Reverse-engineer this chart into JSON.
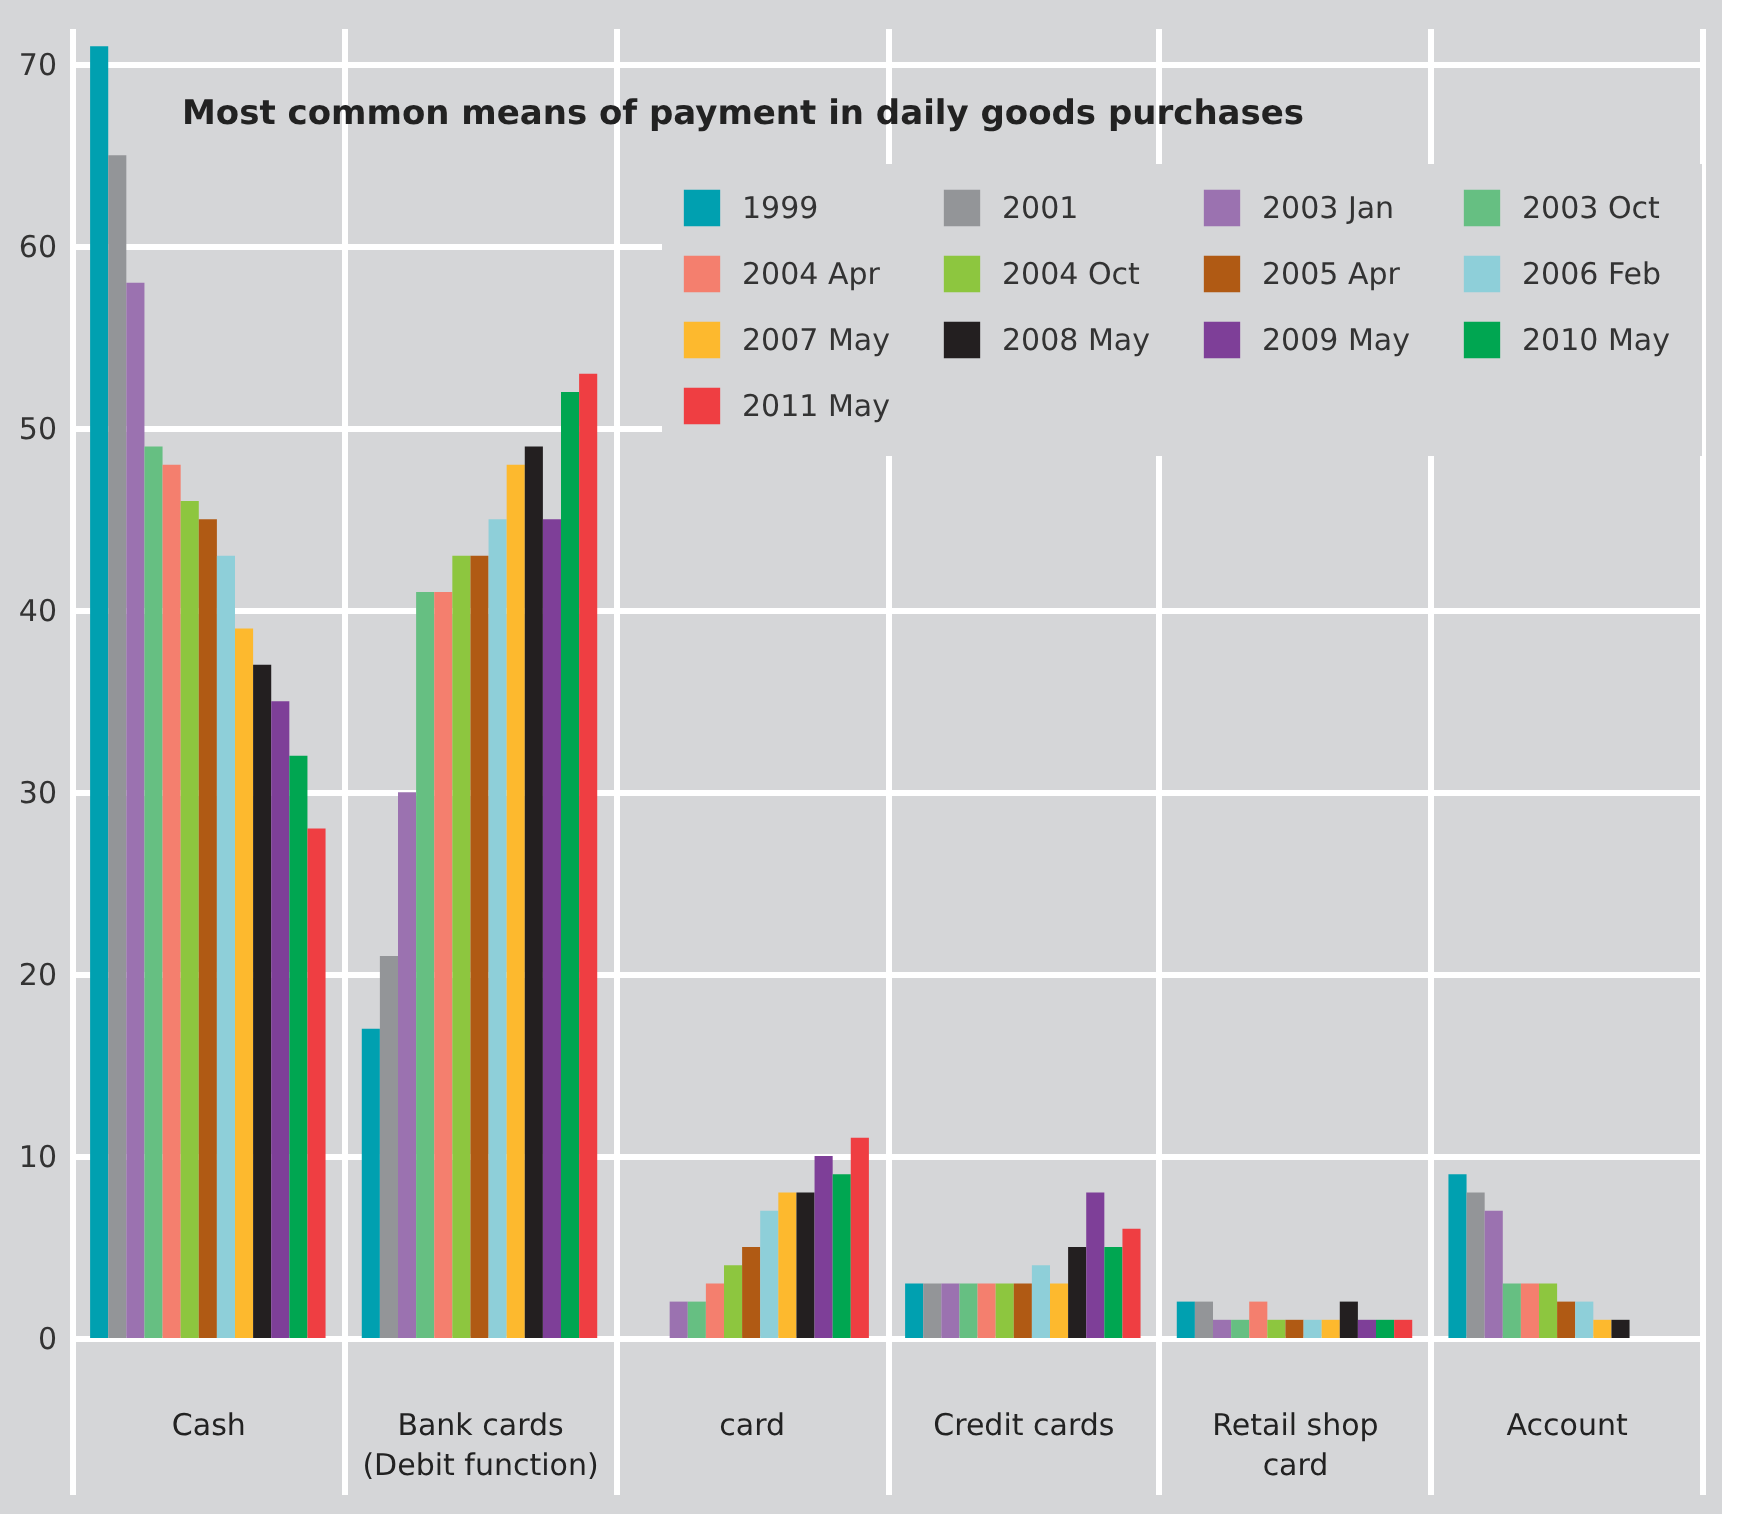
{
  "chart_data": {
    "type": "bar",
    "title": "Most common means of payment in daily goods purchases",
    "categories": [
      "Cash",
      "Bank cards\n(Debit function)",
      "card",
      "Credit cards",
      "Retail shop\ncard",
      "Account"
    ],
    "ylim": [
      0,
      72
    ],
    "yticks": [
      0,
      10,
      20,
      30,
      40,
      50,
      60,
      70
    ],
    "grid": true,
    "legend": "top right",
    "series": [
      {
        "name": "1999",
        "color": "#00a0b0",
        "values": [
          71,
          17,
          null,
          3,
          2,
          9
        ]
      },
      {
        "name": "2001",
        "color": "#939598",
        "values": [
          65,
          21,
          null,
          3,
          2,
          8
        ]
      },
      {
        "name": "2003 Jan",
        "color": "#9b72b0",
        "values": [
          58,
          30,
          2,
          3,
          1,
          7
        ]
      },
      {
        "name": "2003 Oct",
        "color": "#66bf82",
        "values": [
          49,
          41,
          2,
          3,
          1,
          3
        ]
      },
      {
        "name": "2004 Apr",
        "color": "#f47f6e",
        "values": [
          48,
          41,
          3,
          3,
          2,
          3
        ]
      },
      {
        "name": "2004 Oct",
        "color": "#8dc63f",
        "values": [
          46,
          43,
          4,
          3,
          1,
          3
        ]
      },
      {
        "name": "2005 Apr",
        "color": "#b05a14",
        "values": [
          45,
          43,
          5,
          3,
          1,
          2
        ]
      },
      {
        "name": "2006 Feb",
        "color": "#8ecfd9",
        "values": [
          43,
          45,
          7,
          4,
          1,
          2
        ]
      },
      {
        "name": "2007 May",
        "color": "#fdb92e",
        "values": [
          39,
          48,
          8,
          3,
          1,
          1
        ]
      },
      {
        "name": "2008 May",
        "color": "#231f20",
        "values": [
          37,
          49,
          8,
          5,
          2,
          1
        ]
      },
      {
        "name": "2009 May",
        "color": "#7e3f98",
        "values": [
          35,
          45,
          10,
          8,
          1,
          null
        ]
      },
      {
        "name": "2010 May",
        "color": "#00a651",
        "values": [
          32,
          52,
          9,
          5,
          1,
          null
        ]
      },
      {
        "name": "2011 May",
        "color": "#ef3e42",
        "values": [
          28,
          53,
          11,
          6,
          1,
          null
        ]
      }
    ]
  }
}
